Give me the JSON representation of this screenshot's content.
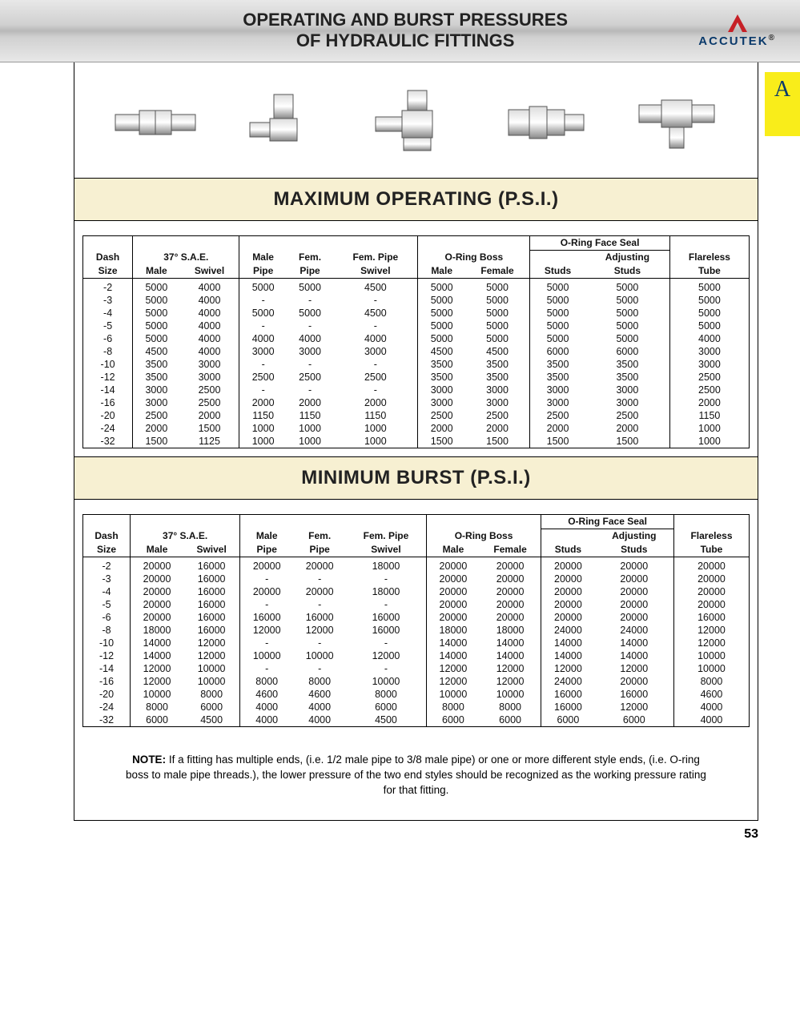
{
  "header": {
    "title_l1": "OPERATING AND BURST PRESSURES",
    "title_l2": "OF HYDRAULIC FITTINGS",
    "brand": "ACCUTEK",
    "brand_tri_color": "#c62026",
    "brand_text_color": "#0b3a6b"
  },
  "tab_letter": "A",
  "section_titles": {
    "max_op": "MAXIMUM OPERATING (P.S.I.)",
    "min_burst": "MINIMUM BURST (P.S.I.)"
  },
  "columns": {
    "dash_l1": "Dash",
    "dash_l2": "Size",
    "sae_grp": "37° S.A.E.",
    "sae_male": "Male",
    "sae_swivel": "Swivel",
    "male_pipe_l1": "Male",
    "male_pipe_l2": "Pipe",
    "fem_pipe_l1": "Fem.",
    "fem_pipe_l2": "Pipe",
    "fem_pipe_sw_l1": "Fem. Pipe",
    "fem_pipe_sw_l2": "Swivel",
    "oring_boss_grp": "O-Ring Boss",
    "ob_male": "Male",
    "ob_female": "Female",
    "orfs_grp": "O-Ring Face Seal",
    "orfs_studs": "Studs",
    "orfs_adj_l1": "Adjusting",
    "orfs_adj_l2": "Studs",
    "flareless_l1": "Flareless",
    "flareless_l2": "Tube"
  },
  "dash_sizes": [
    "-2",
    "-3",
    "-4",
    "-5",
    "-6",
    "-8",
    "-10",
    "-12",
    "-14",
    "-16",
    "-20",
    "-24",
    "-32"
  ],
  "max_operating": [
    [
      "5000",
      "4000",
      "5000",
      "5000",
      "4500",
      "5000",
      "5000",
      "5000",
      "5000",
      "5000"
    ],
    [
      "5000",
      "4000",
      "-",
      "-",
      "-",
      "5000",
      "5000",
      "5000",
      "5000",
      "5000"
    ],
    [
      "5000",
      "4000",
      "5000",
      "5000",
      "4500",
      "5000",
      "5000",
      "5000",
      "5000",
      "5000"
    ],
    [
      "5000",
      "4000",
      "-",
      "-",
      "-",
      "5000",
      "5000",
      "5000",
      "5000",
      "5000"
    ],
    [
      "5000",
      "4000",
      "4000",
      "4000",
      "4000",
      "5000",
      "5000",
      "5000",
      "5000",
      "4000"
    ],
    [
      "4500",
      "4000",
      "3000",
      "3000",
      "3000",
      "4500",
      "4500",
      "6000",
      "6000",
      "3000"
    ],
    [
      "3500",
      "3000",
      "-",
      "-",
      "-",
      "3500",
      "3500",
      "3500",
      "3500",
      "3000"
    ],
    [
      "3500",
      "3000",
      "2500",
      "2500",
      "2500",
      "3500",
      "3500",
      "3500",
      "3500",
      "2500"
    ],
    [
      "3000",
      "2500",
      "-",
      "-",
      "-",
      "3000",
      "3000",
      "3000",
      "3000",
      "2500"
    ],
    [
      "3000",
      "2500",
      "2000",
      "2000",
      "2000",
      "3000",
      "3000",
      "3000",
      "3000",
      "2000"
    ],
    [
      "2500",
      "2000",
      "1150",
      "1150",
      "1150",
      "2500",
      "2500",
      "2500",
      "2500",
      "1150"
    ],
    [
      "2000",
      "1500",
      "1000",
      "1000",
      "1000",
      "2000",
      "2000",
      "2000",
      "2000",
      "1000"
    ],
    [
      "1500",
      "1125",
      "1000",
      "1000",
      "1000",
      "1500",
      "1500",
      "1500",
      "1500",
      "1000"
    ]
  ],
  "min_burst": [
    [
      "20000",
      "16000",
      "20000",
      "20000",
      "18000",
      "20000",
      "20000",
      "20000",
      "20000",
      "20000"
    ],
    [
      "20000",
      "16000",
      "-",
      "-",
      "-",
      "20000",
      "20000",
      "20000",
      "20000",
      "20000"
    ],
    [
      "20000",
      "16000",
      "20000",
      "20000",
      "18000",
      "20000",
      "20000",
      "20000",
      "20000",
      "20000"
    ],
    [
      "20000",
      "16000",
      "-",
      "-",
      "-",
      "20000",
      "20000",
      "20000",
      "20000",
      "20000"
    ],
    [
      "20000",
      "16000",
      "16000",
      "16000",
      "16000",
      "20000",
      "20000",
      "20000",
      "20000",
      "16000"
    ],
    [
      "18000",
      "16000",
      "12000",
      "12000",
      "16000",
      "18000",
      "18000",
      "24000",
      "24000",
      "12000"
    ],
    [
      "14000",
      "12000",
      "-",
      "-",
      "-",
      "14000",
      "14000",
      "14000",
      "14000",
      "12000"
    ],
    [
      "14000",
      "12000",
      "10000",
      "10000",
      "12000",
      "14000",
      "14000",
      "14000",
      "14000",
      "10000"
    ],
    [
      "12000",
      "10000",
      "-",
      "-",
      "-",
      "12000",
      "12000",
      "12000",
      "12000",
      "10000"
    ],
    [
      "12000",
      "10000",
      "8000",
      "8000",
      "10000",
      "12000",
      "12000",
      "24000",
      "20000",
      "8000"
    ],
    [
      "10000",
      "8000",
      "4600",
      "4600",
      "8000",
      "10000",
      "10000",
      "16000",
      "16000",
      "4600"
    ],
    [
      "8000",
      "6000",
      "4000",
      "4000",
      "6000",
      "8000",
      "8000",
      "16000",
      "12000",
      "4000"
    ],
    [
      "6000",
      "4500",
      "4000",
      "4000",
      "4500",
      "6000",
      "6000",
      "6000",
      "6000",
      "4000"
    ]
  ],
  "note_label": "NOTE:",
  "note_text": "If a fitting has multiple ends, (i.e. 1/2 male pipe to 3/8 male pipe) or one or more different style ends, (i.e. O-ring boss to male pipe threads.), the lower pressure of the two end styles should be recognized as the working pressure rating for that fitting.",
  "page_number": "53",
  "colors": {
    "section_bg": "#f7f0d2",
    "tab_bg": "#f9ed1a",
    "border": "#000000"
  }
}
